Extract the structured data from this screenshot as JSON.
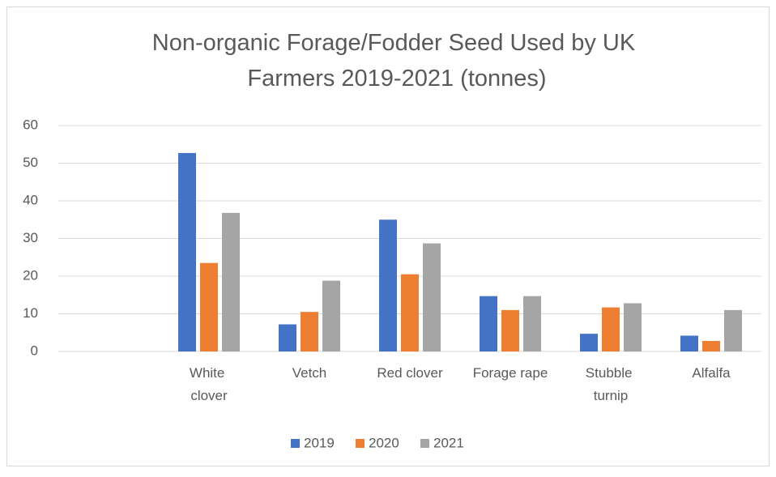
{
  "chart_data": {
    "type": "bar",
    "title": "Non-organic Forage/Fodder Seed Used by UK Farmers 2019-2021 (tonnes)",
    "categories": [
      null,
      "White clover",
      "Vetch",
      "Red clover",
      "Forage rape",
      "Stubble turnip",
      "Alfalfa"
    ],
    "series": [
      {
        "name": "2019",
        "color": "#4472c4",
        "values": [
          null,
          52.7,
          7.2,
          35,
          14.7,
          4.7,
          4.2
        ]
      },
      {
        "name": "2020",
        "color": "#ed7d31",
        "values": [
          null,
          23.5,
          10.5,
          20.5,
          11,
          11.7,
          2.8
        ]
      },
      {
        "name": "2021",
        "color": "#a5a5a5",
        "values": [
          null,
          36.8,
          18.8,
          28.7,
          14.7,
          12.8,
          11
        ]
      }
    ],
    "ylim": [
      0,
      60
    ],
    "yticks": [
      0,
      10,
      20,
      30,
      40,
      50,
      60
    ],
    "grid": true,
    "legend": "bottom"
  }
}
